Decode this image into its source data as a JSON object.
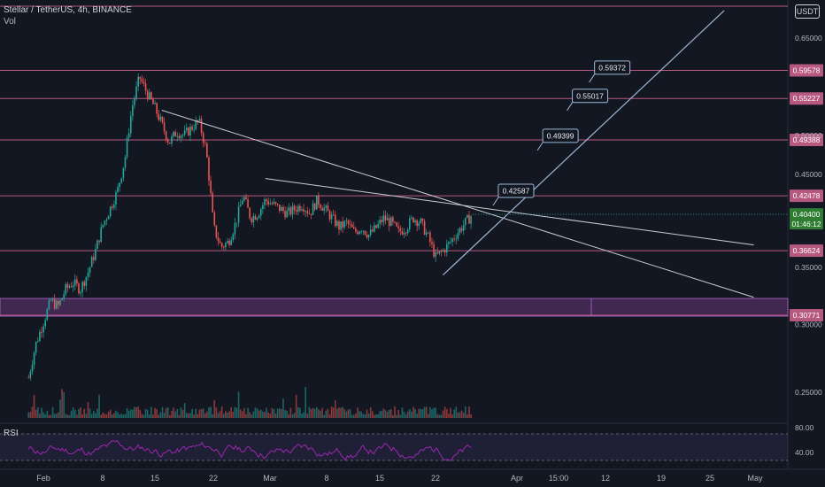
{
  "header": {
    "title": "Stellar / TetherUS, 4h, BINANCE",
    "volume_label": "Vol"
  },
  "badge": {
    "quote": "USDT"
  },
  "colors": {
    "background": "#131722",
    "up": "#26a69a",
    "down": "#ef5350",
    "hline": "#b7597f",
    "zone": "#7b3f8a",
    "rsi": "#9c27b0",
    "trend": "#c8cdd6",
    "projection": "#9db8d6",
    "price_tag": "#2e7d32"
  },
  "chart_data": {
    "type": "candlestick",
    "title": "Stellar / TetherUS, 4h, BINANCE",
    "y_axis": {
      "ticks": [
        "0.65000",
        "0.50000",
        "0.45000",
        "0.35000",
        "0.30000",
        "0.25000"
      ],
      "scale": "log"
    },
    "x_axis": {
      "ticks": [
        "Feb",
        "8",
        "15",
        "22",
        "Mar",
        "8",
        "15",
        "22",
        "Apr",
        "15:00",
        "12",
        "19",
        "25",
        "May"
      ]
    },
    "horizontal_levels": [
      {
        "label": "0.59578"
      },
      {
        "label": "0.55227"
      },
      {
        "label": "0.49388"
      },
      {
        "label": "0.42478"
      },
      {
        "label": "0.36624"
      },
      {
        "label": "0.30771"
      }
    ],
    "support_zone": {
      "from": 0.307,
      "to": 0.322
    },
    "price_path": [
      [
        "2021-01-29",
        0.26
      ],
      [
        "2021-01-30",
        0.285
      ],
      [
        "2021-01-31",
        0.302
      ],
      [
        "2021-02-01",
        0.32
      ],
      [
        "2021-02-02",
        0.315
      ],
      [
        "2021-02-03",
        0.33
      ],
      [
        "2021-02-04",
        0.336
      ],
      [
        "2021-02-05",
        0.33
      ],
      [
        "2021-02-06",
        0.345
      ],
      [
        "2021-02-07",
        0.365
      ],
      [
        "2021-02-08",
        0.392
      ],
      [
        "2021-02-09",
        0.41
      ],
      [
        "2021-02-10",
        0.43
      ],
      [
        "2021-02-11",
        0.468
      ],
      [
        "2021-02-12",
        0.54
      ],
      [
        "2021-02-13",
        0.585
      ],
      [
        "2021-02-14",
        0.56
      ],
      [
        "2021-02-15",
        0.54
      ],
      [
        "2021-02-16",
        0.515
      ],
      [
        "2021-02-17",
        0.49
      ],
      [
        "2021-02-18",
        0.505
      ],
      [
        "2021-02-19",
        0.5
      ],
      [
        "2021-02-20",
        0.51
      ],
      [
        "2021-02-21",
        0.52
      ],
      [
        "2021-02-22",
        0.48
      ],
      [
        "2021-02-23",
        0.39
      ],
      [
        "2021-02-24",
        0.37
      ],
      [
        "2021-02-25",
        0.375
      ],
      [
        "2021-02-26",
        0.395
      ],
      [
        "2021-02-27",
        0.425
      ],
      [
        "2021-02-28",
        0.4
      ],
      [
        "2021-03-01",
        0.405
      ],
      [
        "2021-03-02",
        0.42
      ],
      [
        "2021-03-03",
        0.415
      ],
      [
        "2021-03-04",
        0.41
      ],
      [
        "2021-03-05",
        0.405
      ],
      [
        "2021-03-06",
        0.41
      ],
      [
        "2021-03-07",
        0.415
      ],
      [
        "2021-03-08",
        0.405
      ],
      [
        "2021-03-09",
        0.42
      ],
      [
        "2021-03-10",
        0.41
      ],
      [
        "2021-03-11",
        0.4
      ],
      [
        "2021-03-12",
        0.39
      ],
      [
        "2021-03-13",
        0.395
      ],
      [
        "2021-03-14",
        0.385
      ],
      [
        "2021-03-15",
        0.39
      ],
      [
        "2021-03-16",
        0.382
      ],
      [
        "2021-03-17",
        0.39
      ],
      [
        "2021-03-18",
        0.4
      ],
      [
        "2021-03-19",
        0.395
      ],
      [
        "2021-03-20",
        0.385
      ],
      [
        "2021-03-21",
        0.39
      ],
      [
        "2021-03-22",
        0.4
      ],
      [
        "2021-03-23",
        0.395
      ],
      [
        "2021-03-24",
        0.38
      ],
      [
        "2021-03-25",
        0.36
      ],
      [
        "2021-03-26",
        0.366
      ],
      [
        "2021-03-27",
        0.375
      ],
      [
        "2021-03-28",
        0.385
      ],
      [
        "2021-03-29",
        0.395
      ],
      [
        "2021-03-30",
        0.404
      ]
    ],
    "current_price": {
      "value": "0.40400",
      "countdown": "01:46:12"
    },
    "trendlines": [
      {
        "from": [
          "2021-02-16",
          0.535
        ],
        "to": [
          "2021-05-07",
          0.323
        ]
      },
      {
        "from": [
          "2021-03-02",
          0.445
        ],
        "to": [
          "2021-05-07",
          0.372
        ]
      }
    ],
    "projection": {
      "from": [
        "2021-03-26",
        0.343
      ],
      "to": [
        "2021-05-03",
        0.7
      ],
      "targets": [
        {
          "label": "0.42587",
          "date": "2021-04-02",
          "value": 0.42587
        },
        {
          "label": "0.49399",
          "date": "2021-04-08",
          "value": 0.49399
        },
        {
          "label": "0.55017",
          "date": "2021-04-12",
          "value": 0.55017
        },
        {
          "label": "0.59372",
          "date": "2021-04-15",
          "value": 0.59372
        }
      ]
    },
    "rsi": {
      "label": "RSI",
      "upper": "80.00",
      "lower": "40.00"
    }
  }
}
